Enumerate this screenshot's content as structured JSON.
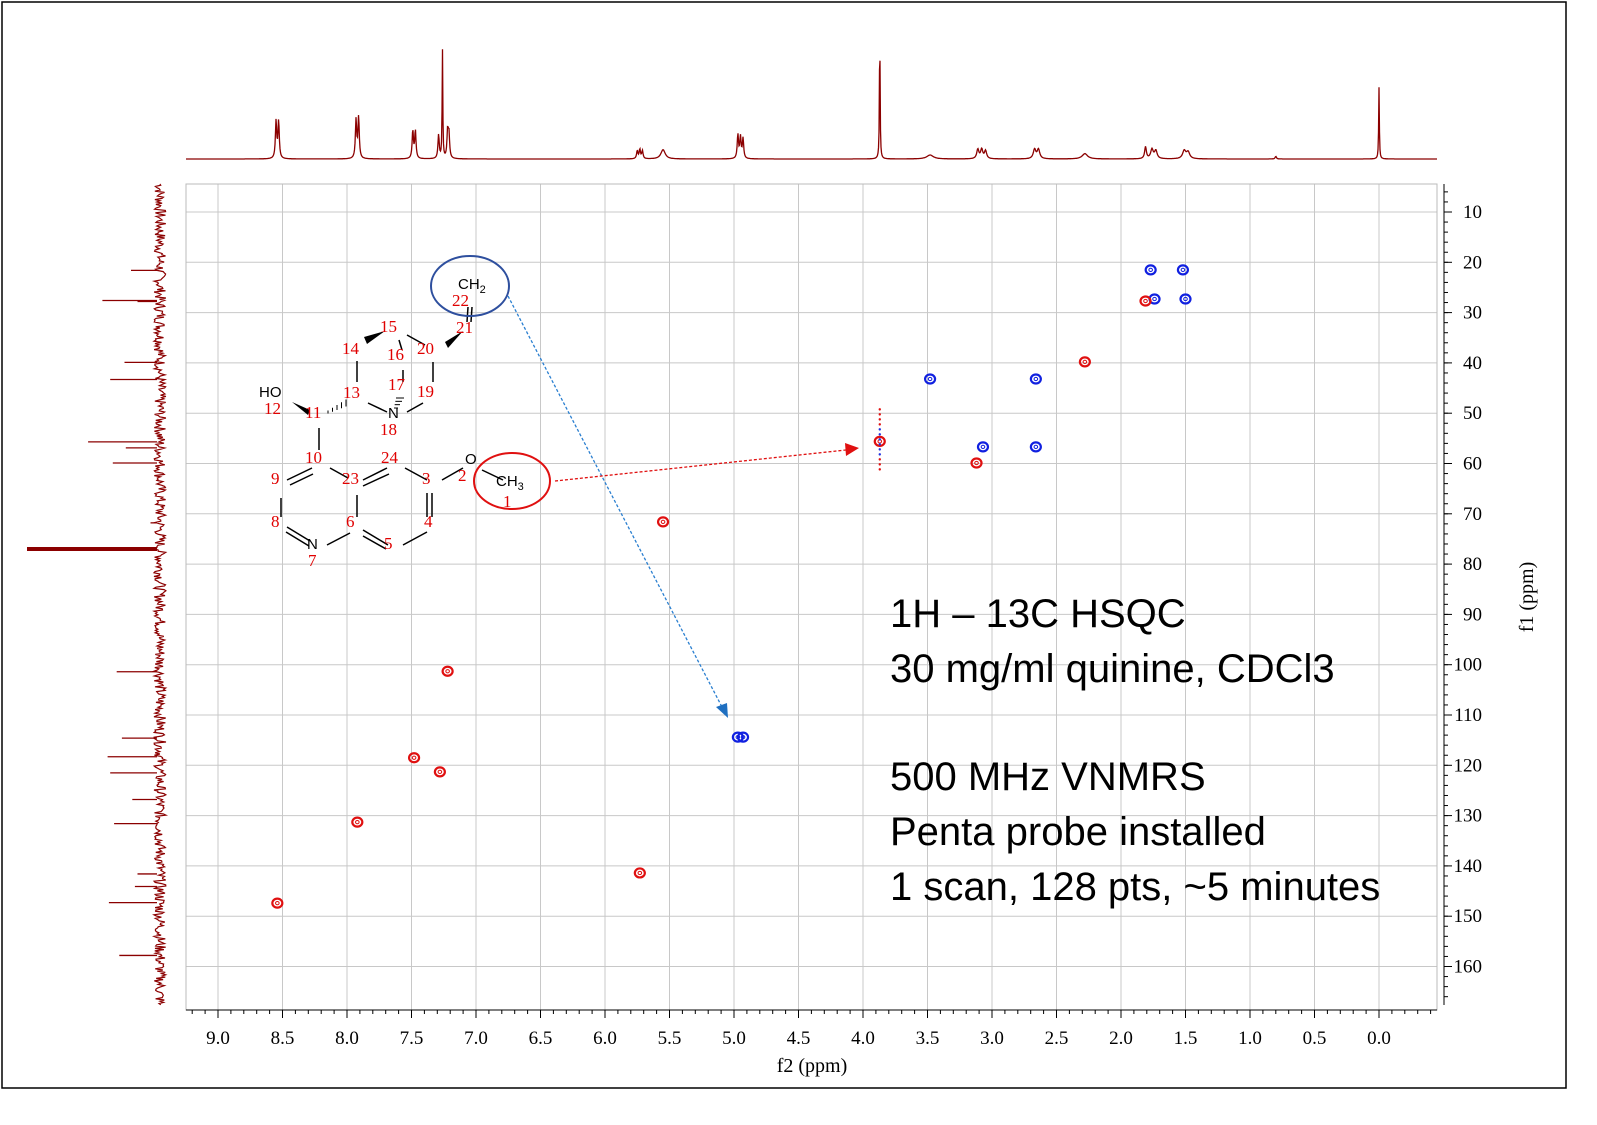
{
  "chart_data": {
    "type": "heatmap",
    "subtype": "2D NMR HSQC contour plot with 1D projections",
    "xlabel": "f2 (ppm)",
    "ylabel": "f1 (ppm)",
    "xlim": [
      9.25,
      -0.45
    ],
    "ylim": [
      4.4,
      168.5
    ],
    "x_reversed": true,
    "x_ticks": [
      "9.0",
      "8.5",
      "8.0",
      "7.5",
      "7.0",
      "6.5",
      "6.0",
      "5.5",
      "5.0",
      "4.5",
      "4.0",
      "3.5",
      "3.0",
      "2.5",
      "2.0",
      "1.5",
      "1.0",
      "0.5",
      "0.0"
    ],
    "y_ticks": [
      "10",
      "20",
      "30",
      "40",
      "50",
      "60",
      "70",
      "80",
      "90",
      "100",
      "110",
      "120",
      "130",
      "140",
      "150",
      "160"
    ],
    "grid": true,
    "colors": {
      "positive": "#e01010",
      "negative": "#1020e0",
      "projection": "#8b0000",
      "grid": "#c8c8c8"
    },
    "cross_peaks": [
      {
        "f2": 1.77,
        "f1": 21.5,
        "phase": "negative"
      },
      {
        "f2": 1.52,
        "f1": 21.5,
        "phase": "negative"
      },
      {
        "f2": 1.74,
        "f1": 27.3,
        "phase": "negative"
      },
      {
        "f2": 1.5,
        "f1": 27.3,
        "phase": "negative"
      },
      {
        "f2": 1.81,
        "f1": 27.7,
        "phase": "positive"
      },
      {
        "f2": 2.28,
        "f1": 39.8,
        "phase": "positive"
      },
      {
        "f2": 3.48,
        "f1": 43.2,
        "phase": "negative"
      },
      {
        "f2": 2.66,
        "f1": 43.2,
        "phase": "negative"
      },
      {
        "f2": 3.87,
        "f1": 55.6,
        "phase": "positive"
      },
      {
        "f2": 3.07,
        "f1": 56.7,
        "phase": "negative"
      },
      {
        "f2": 2.66,
        "f1": 56.7,
        "phase": "negative"
      },
      {
        "f2": 3.12,
        "f1": 59.9,
        "phase": "positive"
      },
      {
        "f2": 5.55,
        "f1": 71.6,
        "phase": "positive"
      },
      {
        "f2": 7.22,
        "f1": 101.3,
        "phase": "positive"
      },
      {
        "f2": 4.97,
        "f1": 114.4,
        "phase": "negative"
      },
      {
        "f2": 4.93,
        "f1": 114.4,
        "phase": "negative"
      },
      {
        "f2": 7.48,
        "f1": 118.5,
        "phase": "positive"
      },
      {
        "f2": 7.28,
        "f1": 121.3,
        "phase": "positive"
      },
      {
        "f2": 7.92,
        "f1": 131.3,
        "phase": "positive"
      },
      {
        "f2": 5.73,
        "f1": 141.4,
        "phase": "positive"
      },
      {
        "f2": 8.54,
        "f1": 147.4,
        "phase": "positive"
      }
    ],
    "proj_1H": [
      {
        "ppm": 8.55,
        "h": 0.28,
        "w": 0.006
      },
      {
        "ppm": 8.53,
        "h": 0.28,
        "w": 0.006
      },
      {
        "ppm": 7.93,
        "h": 0.29,
        "w": 0.006
      },
      {
        "ppm": 7.91,
        "h": 0.31,
        "w": 0.006
      },
      {
        "ppm": 7.49,
        "h": 0.21,
        "w": 0.006
      },
      {
        "ppm": 7.47,
        "h": 0.21,
        "w": 0.006
      },
      {
        "ppm": 7.29,
        "h": 0.18,
        "w": 0.006
      },
      {
        "ppm": 7.26,
        "h": 0.82,
        "w": 0.003
      },
      {
        "ppm": 7.22,
        "h": 0.2,
        "w": 0.006
      },
      {
        "ppm": 7.21,
        "h": 0.18,
        "w": 0.006
      },
      {
        "ppm": 5.75,
        "h": 0.06,
        "w": 0.006
      },
      {
        "ppm": 5.73,
        "h": 0.07,
        "w": 0.006
      },
      {
        "ppm": 5.71,
        "h": 0.06,
        "w": 0.006
      },
      {
        "ppm": 5.55,
        "h": 0.07,
        "w": 0.02
      },
      {
        "ppm": 4.97,
        "h": 0.18,
        "w": 0.006
      },
      {
        "ppm": 4.95,
        "h": 0.16,
        "w": 0.006
      },
      {
        "ppm": 4.93,
        "h": 0.15,
        "w": 0.006
      },
      {
        "ppm": 3.87,
        "h": 1.0,
        "w": 0.003
      },
      {
        "ppm": 3.48,
        "h": 0.03,
        "w": 0.03
      },
      {
        "ppm": 3.11,
        "h": 0.07,
        "w": 0.01
      },
      {
        "ppm": 3.08,
        "h": 0.07,
        "w": 0.01
      },
      {
        "ppm": 3.05,
        "h": 0.06,
        "w": 0.01
      },
      {
        "ppm": 2.67,
        "h": 0.07,
        "w": 0.012
      },
      {
        "ppm": 2.64,
        "h": 0.07,
        "w": 0.012
      },
      {
        "ppm": 2.28,
        "h": 0.04,
        "w": 0.025
      },
      {
        "ppm": 1.81,
        "h": 0.09,
        "w": 0.008
      },
      {
        "ppm": 1.76,
        "h": 0.07,
        "w": 0.012
      },
      {
        "ppm": 1.73,
        "h": 0.06,
        "w": 0.012
      },
      {
        "ppm": 1.51,
        "h": 0.06,
        "w": 0.015
      },
      {
        "ppm": 1.48,
        "h": 0.05,
        "w": 0.015
      },
      {
        "ppm": 0.8,
        "h": 0.02,
        "w": 0.006
      },
      {
        "ppm": 0.0,
        "h": 0.54,
        "w": 0.003
      }
    ],
    "proj_13C": [
      {
        "ppm": 21.6,
        "h": 0.2
      },
      {
        "ppm": 27.6,
        "h": 0.42
      },
      {
        "ppm": 27.8,
        "h": 0.15
      },
      {
        "ppm": 39.9,
        "h": 0.25
      },
      {
        "ppm": 43.3,
        "h": 0.36
      },
      {
        "ppm": 55.7,
        "h": 0.53
      },
      {
        "ppm": 56.9,
        "h": 0.24
      },
      {
        "ppm": 59.9,
        "h": 0.34
      },
      {
        "ppm": 71.8,
        "h": 0.05
      },
      {
        "ppm": 77.0,
        "h": 1.0
      },
      {
        "ppm": 101.4,
        "h": 0.31
      },
      {
        "ppm": 114.6,
        "h": 0.27
      },
      {
        "ppm": 118.3,
        "h": 0.38
      },
      {
        "ppm": 121.5,
        "h": 0.36
      },
      {
        "ppm": 126.8,
        "h": 0.19
      },
      {
        "ppm": 131.6,
        "h": 0.33
      },
      {
        "ppm": 141.6,
        "h": 0.15
      },
      {
        "ppm": 144.1,
        "h": 0.17
      },
      {
        "ppm": 147.3,
        "h": 0.37
      },
      {
        "ppm": 157.8,
        "h": 0.29
      }
    ]
  },
  "annotation": {
    "lines": [
      "1H – 13C HSQC",
      "30 mg/ml quinine, CDCl3",
      "",
      "500 MHz VNMRS",
      "Penta probe installed",
      "1 scan, 128 pts, ~5 minutes"
    ]
  },
  "molecule": {
    "name_labels": {
      "ch2": "CH",
      "ch2_sub": "2",
      "ch3": "CH",
      "ch3_sub": "3",
      "ho": "HO",
      "n18": "N",
      "n7": "N",
      "o2": "O"
    },
    "atom_numbers": [
      "1",
      "2",
      "3",
      "4",
      "5",
      "6",
      "7",
      "8",
      "9",
      "10",
      "11",
      "12",
      "13",
      "14",
      "15",
      "16",
      "17",
      "18",
      "19",
      "20",
      "21",
      "22",
      "23",
      "24"
    ],
    "highlight_colors": {
      "vinyl_ch2": "#2e4f9e",
      "methoxy_ch3": "#e01010"
    }
  }
}
